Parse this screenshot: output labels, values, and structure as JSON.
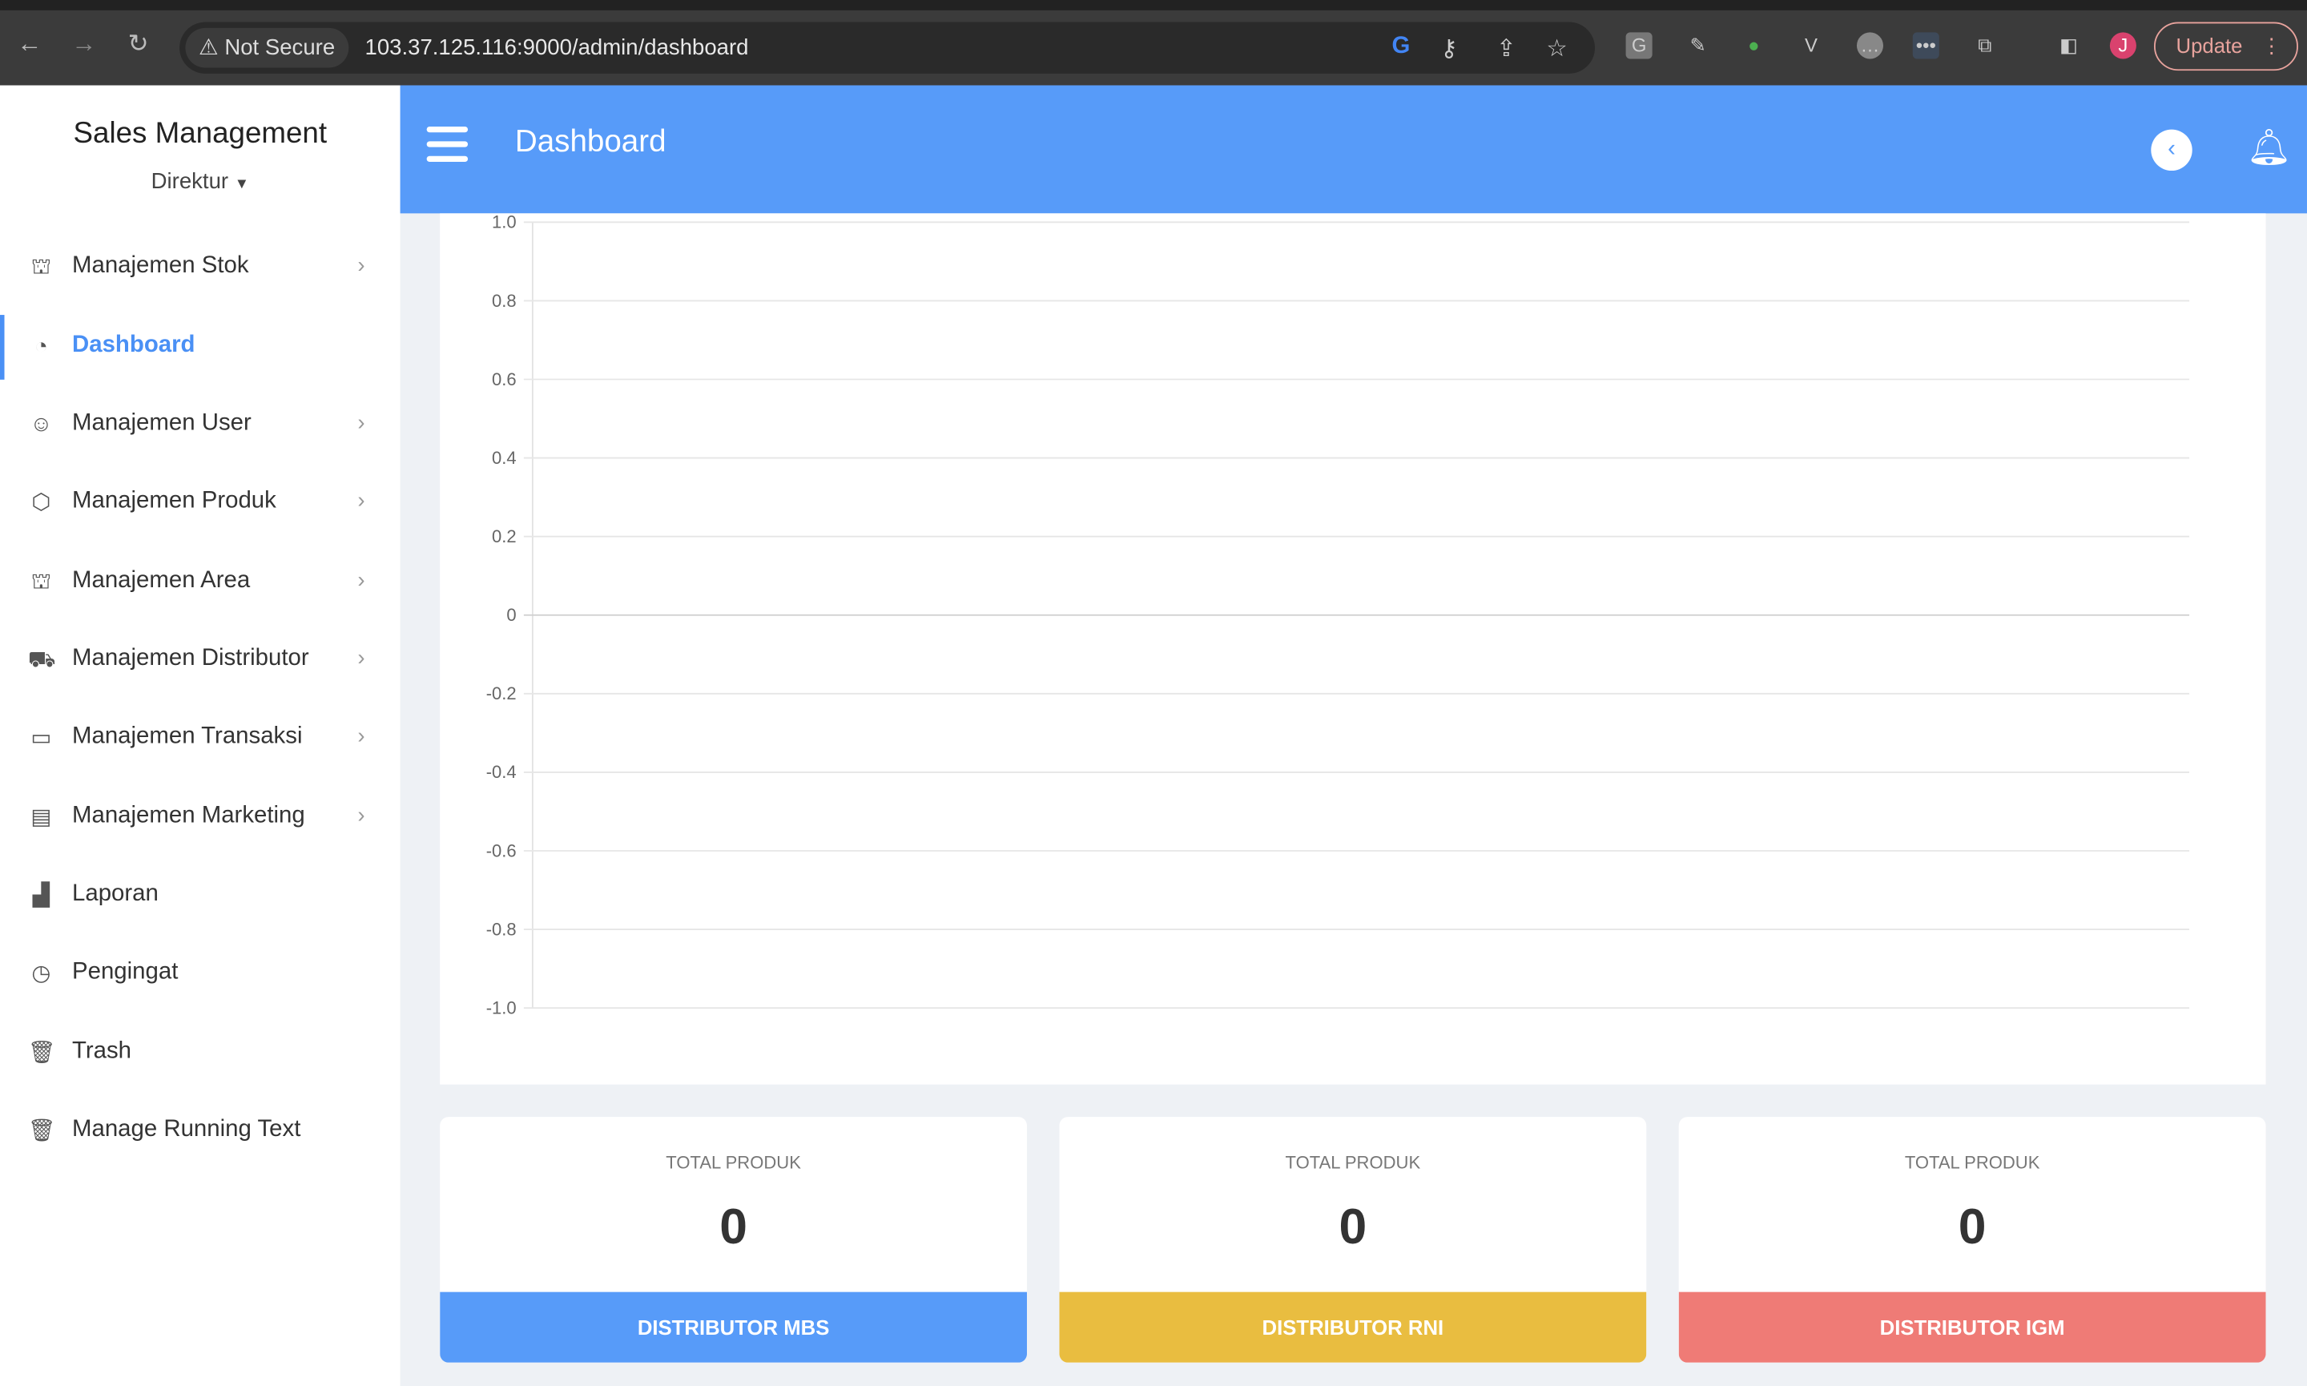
{
  "browser": {
    "security": "Not Secure",
    "url": "103.37.125.116:9000/admin/dashboard",
    "update_label": "Update",
    "profile_initial": "J"
  },
  "sidebar": {
    "brand": "Sales Management",
    "role": "Direktur",
    "items": [
      {
        "label": "Manajemen Stok",
        "icon": "pallet-icon",
        "chevron": true
      },
      {
        "label": "Dashboard",
        "icon": "speedometer-icon",
        "active": true
      },
      {
        "label": "Manajemen User",
        "icon": "user-icon",
        "chevron": true
      },
      {
        "label": "Manajemen Produk",
        "icon": "box-icon",
        "chevron": true
      },
      {
        "label": "Manajemen Area",
        "icon": "pallet-icon",
        "chevron": true
      },
      {
        "label": "Manajemen Distributor",
        "icon": "truck-icon",
        "chevron": true
      },
      {
        "label": "Manajemen Transaksi",
        "icon": "money-icon",
        "chevron": true
      },
      {
        "label": "Manajemen Marketing",
        "icon": "chart-monitor-icon",
        "chevron": true
      },
      {
        "label": "Laporan",
        "icon": "bar-chart-icon"
      },
      {
        "label": "Pengingat",
        "icon": "clock-icon"
      },
      {
        "label": "Trash",
        "icon": "trash-icon"
      },
      {
        "label": "Manage Running Text",
        "icon": "trash-icon"
      }
    ]
  },
  "header": {
    "title": "Dashboard"
  },
  "chart_data": {
    "type": "line",
    "series": [],
    "ylim": [
      -1.0,
      1.0
    ],
    "yticks": [
      "1.0",
      "0.8",
      "0.6",
      "0.4",
      "0.2",
      "0",
      "-0.2",
      "-0.4",
      "-0.6",
      "-0.8",
      "-1.0"
    ],
    "grid": true
  },
  "cards": [
    {
      "title": "TOTAL PRODUK",
      "value": "0",
      "footer": "DISTRIBUTOR MBS",
      "color": "#579bf9"
    },
    {
      "title": "TOTAL PRODUK",
      "value": "0",
      "footer": "DISTRIBUTOR RNI",
      "color": "#e9bd40"
    },
    {
      "title": "TOTAL PRODUK",
      "value": "0",
      "footer": "DISTRIBUTOR IGM",
      "color": "#ef7b76"
    }
  ]
}
